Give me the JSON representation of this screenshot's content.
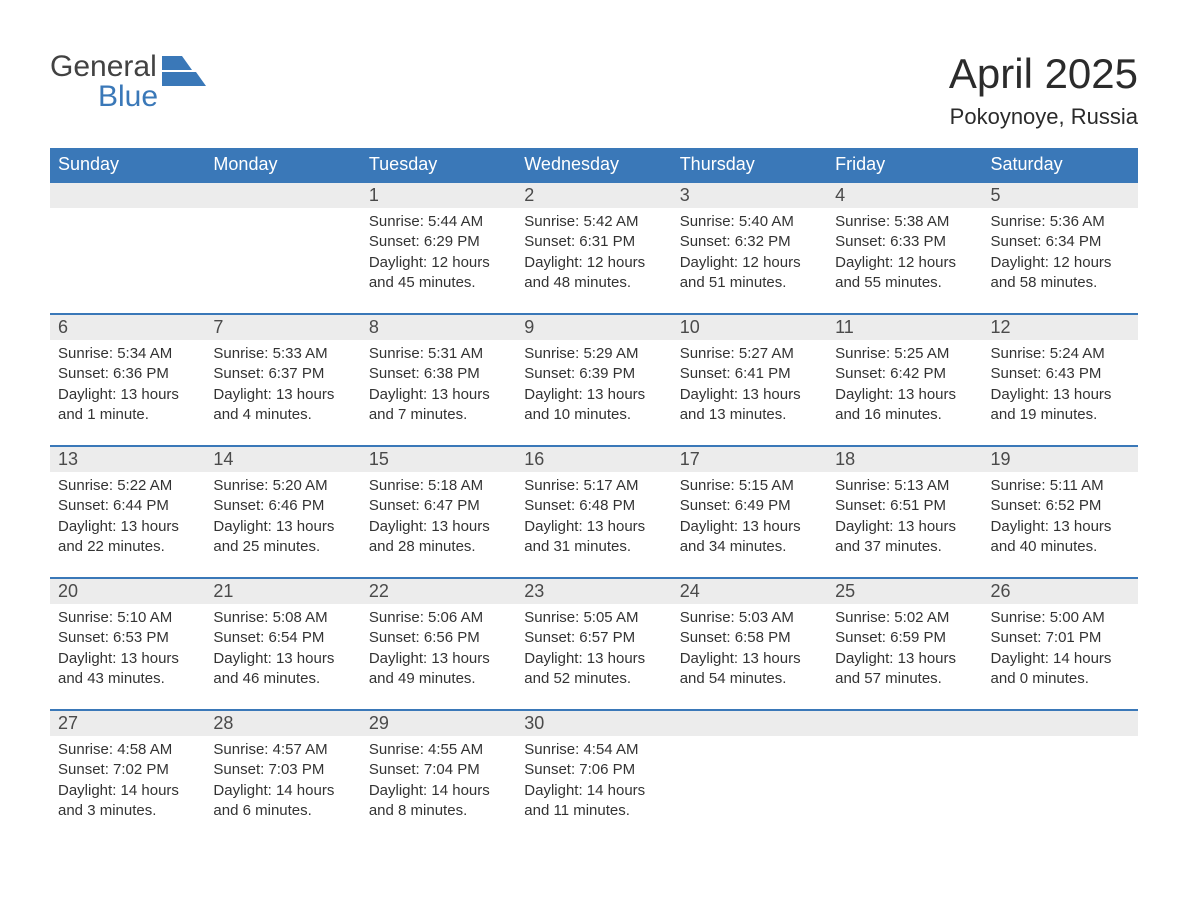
{
  "brand": {
    "part1": "General",
    "part2": "Blue",
    "accent": "#3a78b8",
    "text_color": "#424242"
  },
  "title": {
    "month": "April 2025",
    "location": "Pokoynoye, Russia"
  },
  "colors": {
    "header_bg": "#3a78b8",
    "header_fg": "#ffffff",
    "daynum_bg": "#ececec",
    "daynum_fg": "#4a4a4a",
    "body_text": "#333333",
    "row_divider": "#3a78b8",
    "page_bg": "#ffffff"
  },
  "typography": {
    "month_title_pt": 42,
    "location_pt": 22,
    "weekday_pt": 18,
    "daynum_pt": 18,
    "body_pt": 15,
    "font_family": "Arial"
  },
  "calendar": {
    "type": "table",
    "columns": [
      "Sunday",
      "Monday",
      "Tuesday",
      "Wednesday",
      "Thursday",
      "Friday",
      "Saturday"
    ],
    "weeks": [
      [
        {
          "day": null
        },
        {
          "day": null
        },
        {
          "day": "1",
          "sunrise": "Sunrise: 5:44 AM",
          "sunset": "Sunset: 6:29 PM",
          "daylight": "Daylight: 12 hours and 45 minutes."
        },
        {
          "day": "2",
          "sunrise": "Sunrise: 5:42 AM",
          "sunset": "Sunset: 6:31 PM",
          "daylight": "Daylight: 12 hours and 48 minutes."
        },
        {
          "day": "3",
          "sunrise": "Sunrise: 5:40 AM",
          "sunset": "Sunset: 6:32 PM",
          "daylight": "Daylight: 12 hours and 51 minutes."
        },
        {
          "day": "4",
          "sunrise": "Sunrise: 5:38 AM",
          "sunset": "Sunset: 6:33 PM",
          "daylight": "Daylight: 12 hours and 55 minutes."
        },
        {
          "day": "5",
          "sunrise": "Sunrise: 5:36 AM",
          "sunset": "Sunset: 6:34 PM",
          "daylight": "Daylight: 12 hours and 58 minutes."
        }
      ],
      [
        {
          "day": "6",
          "sunrise": "Sunrise: 5:34 AM",
          "sunset": "Sunset: 6:36 PM",
          "daylight": "Daylight: 13 hours and 1 minute."
        },
        {
          "day": "7",
          "sunrise": "Sunrise: 5:33 AM",
          "sunset": "Sunset: 6:37 PM",
          "daylight": "Daylight: 13 hours and 4 minutes."
        },
        {
          "day": "8",
          "sunrise": "Sunrise: 5:31 AM",
          "sunset": "Sunset: 6:38 PM",
          "daylight": "Daylight: 13 hours and 7 minutes."
        },
        {
          "day": "9",
          "sunrise": "Sunrise: 5:29 AM",
          "sunset": "Sunset: 6:39 PM",
          "daylight": "Daylight: 13 hours and 10 minutes."
        },
        {
          "day": "10",
          "sunrise": "Sunrise: 5:27 AM",
          "sunset": "Sunset: 6:41 PM",
          "daylight": "Daylight: 13 hours and 13 minutes."
        },
        {
          "day": "11",
          "sunrise": "Sunrise: 5:25 AM",
          "sunset": "Sunset: 6:42 PM",
          "daylight": "Daylight: 13 hours and 16 minutes."
        },
        {
          "day": "12",
          "sunrise": "Sunrise: 5:24 AM",
          "sunset": "Sunset: 6:43 PM",
          "daylight": "Daylight: 13 hours and 19 minutes."
        }
      ],
      [
        {
          "day": "13",
          "sunrise": "Sunrise: 5:22 AM",
          "sunset": "Sunset: 6:44 PM",
          "daylight": "Daylight: 13 hours and 22 minutes."
        },
        {
          "day": "14",
          "sunrise": "Sunrise: 5:20 AM",
          "sunset": "Sunset: 6:46 PM",
          "daylight": "Daylight: 13 hours and 25 minutes."
        },
        {
          "day": "15",
          "sunrise": "Sunrise: 5:18 AM",
          "sunset": "Sunset: 6:47 PM",
          "daylight": "Daylight: 13 hours and 28 minutes."
        },
        {
          "day": "16",
          "sunrise": "Sunrise: 5:17 AM",
          "sunset": "Sunset: 6:48 PM",
          "daylight": "Daylight: 13 hours and 31 minutes."
        },
        {
          "day": "17",
          "sunrise": "Sunrise: 5:15 AM",
          "sunset": "Sunset: 6:49 PM",
          "daylight": "Daylight: 13 hours and 34 minutes."
        },
        {
          "day": "18",
          "sunrise": "Sunrise: 5:13 AM",
          "sunset": "Sunset: 6:51 PM",
          "daylight": "Daylight: 13 hours and 37 minutes."
        },
        {
          "day": "19",
          "sunrise": "Sunrise: 5:11 AM",
          "sunset": "Sunset: 6:52 PM",
          "daylight": "Daylight: 13 hours and 40 minutes."
        }
      ],
      [
        {
          "day": "20",
          "sunrise": "Sunrise: 5:10 AM",
          "sunset": "Sunset: 6:53 PM",
          "daylight": "Daylight: 13 hours and 43 minutes."
        },
        {
          "day": "21",
          "sunrise": "Sunrise: 5:08 AM",
          "sunset": "Sunset: 6:54 PM",
          "daylight": "Daylight: 13 hours and 46 minutes."
        },
        {
          "day": "22",
          "sunrise": "Sunrise: 5:06 AM",
          "sunset": "Sunset: 6:56 PM",
          "daylight": "Daylight: 13 hours and 49 minutes."
        },
        {
          "day": "23",
          "sunrise": "Sunrise: 5:05 AM",
          "sunset": "Sunset: 6:57 PM",
          "daylight": "Daylight: 13 hours and 52 minutes."
        },
        {
          "day": "24",
          "sunrise": "Sunrise: 5:03 AM",
          "sunset": "Sunset: 6:58 PM",
          "daylight": "Daylight: 13 hours and 54 minutes."
        },
        {
          "day": "25",
          "sunrise": "Sunrise: 5:02 AM",
          "sunset": "Sunset: 6:59 PM",
          "daylight": "Daylight: 13 hours and 57 minutes."
        },
        {
          "day": "26",
          "sunrise": "Sunrise: 5:00 AM",
          "sunset": "Sunset: 7:01 PM",
          "daylight": "Daylight: 14 hours and 0 minutes."
        }
      ],
      [
        {
          "day": "27",
          "sunrise": "Sunrise: 4:58 AM",
          "sunset": "Sunset: 7:02 PM",
          "daylight": "Daylight: 14 hours and 3 minutes."
        },
        {
          "day": "28",
          "sunrise": "Sunrise: 4:57 AM",
          "sunset": "Sunset: 7:03 PM",
          "daylight": "Daylight: 14 hours and 6 minutes."
        },
        {
          "day": "29",
          "sunrise": "Sunrise: 4:55 AM",
          "sunset": "Sunset: 7:04 PM",
          "daylight": "Daylight: 14 hours and 8 minutes."
        },
        {
          "day": "30",
          "sunrise": "Sunrise: 4:54 AM",
          "sunset": "Sunset: 7:06 PM",
          "daylight": "Daylight: 14 hours and 11 minutes."
        },
        {
          "day": null
        },
        {
          "day": null
        },
        {
          "day": null
        }
      ]
    ]
  }
}
